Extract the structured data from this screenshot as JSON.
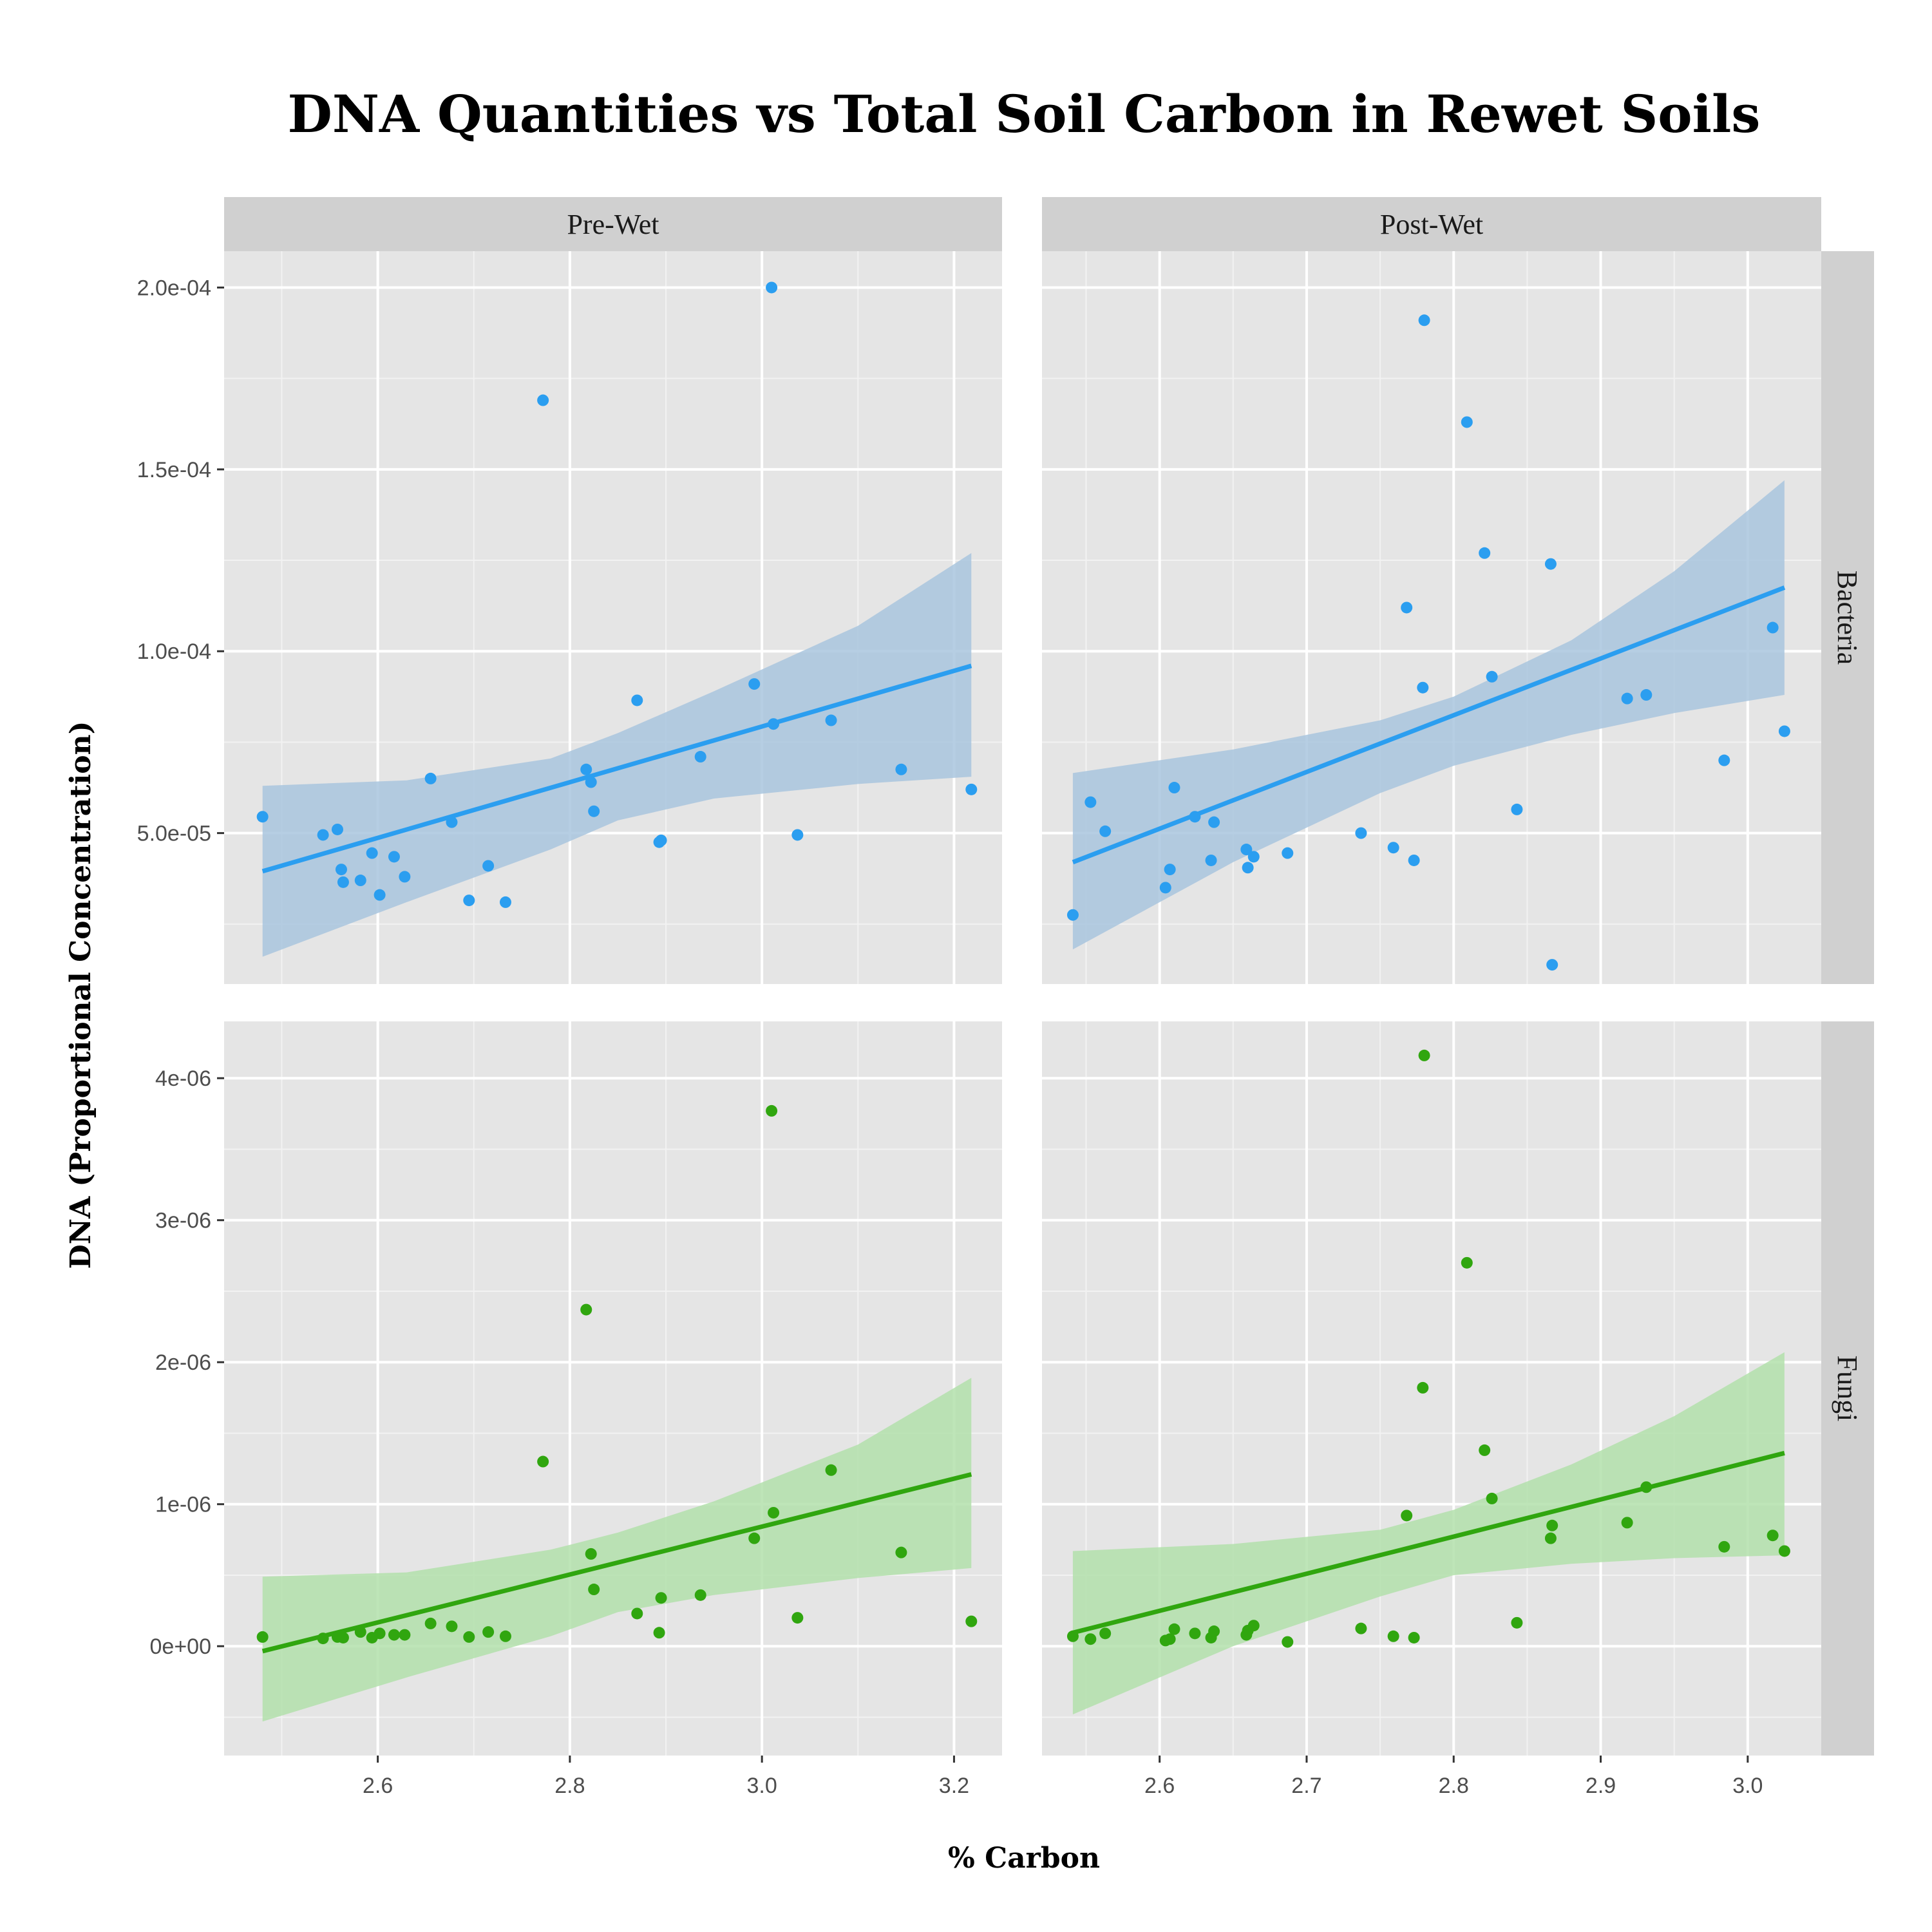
{
  "chart_data": {
    "type": "scatter",
    "title": "DNA Quantities vs Total Soil Carbon in Rewet Soils",
    "xlabel": "% Carbon",
    "ylabel": "DNA (Proportional Concentration)",
    "columns": [
      "Pre-Wet",
      "Post-Wet"
    ],
    "rows": [
      "Bacteria",
      "Fungi"
    ],
    "colors": {
      "Bacteria": "#2b9ef0",
      "Fungi": "#30a60f",
      "Bacteria_band": "#a9c5de",
      "Fungi_band": "#b3e0ac",
      "panel": "#e5e5e5",
      "strip": "#d0d0d0"
    },
    "grid": true,
    "panels": [
      {
        "row": "Bacteria",
        "column": "Pre-Wet",
        "xlim": [
          2.44,
          3.25
        ],
        "ylim": [
          8.5e-06,
          0.00021
        ],
        "x_ticks": [
          2.6,
          2.8,
          3.0,
          3.2
        ],
        "x_tick_labels": [
          "2.6",
          "2.8",
          "3.0",
          "3.2"
        ],
        "y_ticks": [
          5e-05,
          0.0001,
          0.00015,
          0.0002
        ],
        "y_tick_labels": [
          "5.0e-05",
          "1.0e-04",
          "1.5e-04",
          "2.0e-04"
        ],
        "points": [
          [
            2.48,
            5.45e-05
          ],
          [
            2.543,
            4.95e-05
          ],
          [
            2.558,
            5.1e-05
          ],
          [
            2.562,
            4e-05
          ],
          [
            2.564,
            3.65e-05
          ],
          [
            2.582,
            3.7e-05
          ],
          [
            2.594,
            4.45e-05
          ],
          [
            2.602,
            3.3e-05
          ],
          [
            2.617,
            4.35e-05
          ],
          [
            2.628,
            3.8e-05
          ],
          [
            2.655,
            6.5e-05
          ],
          [
            2.677,
            5.3e-05
          ],
          [
            2.695,
            3.15e-05
          ],
          [
            2.715,
            4.1e-05
          ],
          [
            2.733,
            3.1e-05
          ],
          [
            2.772,
            0.000169
          ],
          [
            2.817,
            6.75e-05
          ],
          [
            2.822,
            6.4e-05
          ],
          [
            2.825,
            5.6e-05
          ],
          [
            2.87,
            8.65e-05
          ],
          [
            2.893,
            4.75e-05
          ],
          [
            2.895,
            4.8e-05
          ],
          [
            2.936,
            7.1e-05
          ],
          [
            2.992,
            9.1e-05
          ],
          [
            3.01,
            0.0002
          ],
          [
            3.012,
            8e-05
          ],
          [
            3.037,
            4.95e-05
          ],
          [
            3.072,
            8.1e-05
          ],
          [
            3.145,
            6.75e-05
          ],
          [
            3.218,
            6.2e-05
          ]
        ],
        "fit": {
          "x": [
            2.48,
            3.218
          ],
          "y": [
            3.95e-05,
            9.6e-05
          ]
        },
        "band": {
          "x": [
            2.48,
            2.63,
            2.78,
            2.85,
            2.95,
            3.1,
            3.218
          ],
          "lower": [
            1.6e-05,
            3.1e-05,
            4.55e-05,
            5.35e-05,
            5.95e-05,
            6.35e-05,
            6.55e-05
          ],
          "upper": [
            6.3e-05,
            6.45e-05,
            7.05e-05,
            7.75e-05,
            8.9e-05,
            0.000107,
            0.000127
          ]
        }
      },
      {
        "row": "Bacteria",
        "column": "Post-Wet",
        "xlim": [
          2.52,
          3.05
        ],
        "ylim": [
          8.5e-06,
          0.00021
        ],
        "x_ticks": [
          2.6,
          2.7,
          2.8,
          2.9,
          3.0
        ],
        "x_tick_labels": [
          "2.6",
          "2.7",
          "2.8",
          "2.9",
          "3.0"
        ],
        "y_ticks": [
          5e-05,
          0.0001,
          0.00015,
          0.0002
        ],
        "y_tick_labels": [
          "5.0e-05",
          "1.0e-04",
          "1.5e-04",
          "2.0e-04"
        ],
        "points": [
          [
            2.541,
            2.75e-05
          ],
          [
            2.553,
            5.85e-05
          ],
          [
            2.563,
            5.05e-05
          ],
          [
            2.604,
            3.5e-05
          ],
          [
            2.607,
            4e-05
          ],
          [
            2.61,
            6.25e-05
          ],
          [
            2.624,
            5.45e-05
          ],
          [
            2.635,
            4.25e-05
          ],
          [
            2.637,
            5.3e-05
          ],
          [
            2.659,
            4.55e-05
          ],
          [
            2.66,
            4.05e-05
          ],
          [
            2.664,
            4.35e-05
          ],
          [
            2.687,
            4.45e-05
          ],
          [
            2.737,
            5e-05
          ],
          [
            2.759,
            4.6e-05
          ],
          [
            2.768,
            0.000112
          ],
          [
            2.773,
            4.25e-05
          ],
          [
            2.779,
            9e-05
          ],
          [
            2.78,
            0.000191
          ],
          [
            2.809,
            0.000163
          ],
          [
            2.821,
            0.000127
          ],
          [
            2.826,
            9.3e-05
          ],
          [
            2.843,
            5.65e-05
          ],
          [
            2.866,
            0.000124
          ],
          [
            2.867,
            1.38e-05
          ],
          [
            2.918,
            8.7e-05
          ],
          [
            2.931,
            8.8e-05
          ],
          [
            2.984,
            7e-05
          ],
          [
            3.017,
            0.0001065
          ],
          [
            3.025,
            7.8e-05
          ]
        ],
        "fit": {
          "x": [
            2.541,
            3.025
          ],
          "y": [
            4.2e-05,
            0.0001175
          ]
        },
        "band": {
          "x": [
            2.541,
            2.65,
            2.75,
            2.8,
            2.88,
            2.95,
            3.025
          ],
          "lower": [
            1.8e-05,
            4.2e-05,
            6.1e-05,
            6.85e-05,
            7.7e-05,
            8.3e-05,
            8.8e-05
          ],
          "upper": [
            6.65e-05,
            7.3e-05,
            8.1e-05,
            8.75e-05,
            0.000103,
            0.000122,
            0.000147
          ]
        }
      },
      {
        "row": "Fungi",
        "column": "Pre-Wet",
        "xlim": [
          2.44,
          3.25
        ],
        "ylim": [
          -7.7e-07,
          4.4e-06
        ],
        "x_ticks": [
          2.6,
          2.8,
          3.0,
          3.2
        ],
        "x_tick_labels": [
          "2.6",
          "2.8",
          "3.0",
          "3.2"
        ],
        "y_ticks": [
          0,
          1e-06,
          2e-06,
          3e-06,
          4e-06
        ],
        "y_tick_labels": [
          "0e+00",
          "1e-06",
          "2e-06",
          "3e-06",
          "4e-06"
        ],
        "points": [
          [
            2.48,
            6.5e-08
          ],
          [
            2.543,
            5.5e-08
          ],
          [
            2.558,
            6.5e-08
          ],
          [
            2.562,
            7e-08
          ],
          [
            2.564,
            6e-08
          ],
          [
            2.582,
            1e-07
          ],
          [
            2.594,
            6e-08
          ],
          [
            2.602,
            9e-08
          ],
          [
            2.617,
            8e-08
          ],
          [
            2.628,
            8e-08
          ],
          [
            2.655,
            1.6e-07
          ],
          [
            2.677,
            1.4e-07
          ],
          [
            2.695,
            6.5e-08
          ],
          [
            2.715,
            1e-07
          ],
          [
            2.733,
            7e-08
          ],
          [
            2.772,
            1.3e-06
          ],
          [
            2.817,
            2.37e-06
          ],
          [
            2.822,
            6.5e-07
          ],
          [
            2.825,
            4e-07
          ],
          [
            2.87,
            2.3e-07
          ],
          [
            2.893,
            9.5e-08
          ],
          [
            2.895,
            3.4e-07
          ],
          [
            2.936,
            3.6e-07
          ],
          [
            2.992,
            7.6e-07
          ],
          [
            3.01,
            3.77e-06
          ],
          [
            3.012,
            9.4e-07
          ],
          [
            3.037,
            2e-07
          ],
          [
            3.072,
            1.24e-06
          ],
          [
            3.145,
            6.6e-07
          ],
          [
            3.218,
            1.75e-07
          ]
        ],
        "fit": {
          "x": [
            2.48,
            3.218
          ],
          "y": [
            -3.5e-08,
            1.21e-06
          ]
        },
        "band": {
          "x": [
            2.48,
            2.63,
            2.78,
            2.85,
            2.95,
            3.1,
            3.218
          ],
          "lower": [
            -5.3e-07,
            -2.2e-07,
            7e-08,
            2.4e-07,
            3.6e-07,
            4.8e-07,
            5.5e-07
          ],
          "upper": [
            4.9e-07,
            5.2e-07,
            6.8e-07,
            8e-07,
            1.02e-06,
            1.42e-06,
            1.89e-06
          ]
        }
      },
      {
        "row": "Fungi",
        "column": "Post-Wet",
        "xlim": [
          2.52,
          3.05
        ],
        "ylim": [
          -7.7e-07,
          4.4e-06
        ],
        "x_ticks": [
          2.6,
          2.7,
          2.8,
          2.9,
          3.0
        ],
        "x_tick_labels": [
          "2.6",
          "2.7",
          "2.8",
          "2.9",
          "3.0"
        ],
        "y_ticks": [
          0,
          1e-06,
          2e-06,
          3e-06,
          4e-06
        ],
        "y_tick_labels": [
          "0e+00",
          "1e-06",
          "2e-06",
          "3e-06",
          "4e-06"
        ],
        "points": [
          [
            2.541,
            7e-08
          ],
          [
            2.553,
            5e-08
          ],
          [
            2.563,
            9e-08
          ],
          [
            2.604,
            4e-08
          ],
          [
            2.607,
            5e-08
          ],
          [
            2.61,
            1.2e-07
          ],
          [
            2.624,
            9e-08
          ],
          [
            2.635,
            6e-08
          ],
          [
            2.637,
            1.05e-07
          ],
          [
            2.659,
            8e-08
          ],
          [
            2.66,
            1.1e-07
          ],
          [
            2.664,
            1.45e-07
          ],
          [
            2.687,
            3e-08
          ],
          [
            2.737,
            1.25e-07
          ],
          [
            2.759,
            7e-08
          ],
          [
            2.768,
            9.2e-07
          ],
          [
            2.773,
            6e-08
          ],
          [
            2.779,
            1.82e-06
          ],
          [
            2.78,
            4.16e-06
          ],
          [
            2.809,
            2.7e-06
          ],
          [
            2.821,
            1.38e-06
          ],
          [
            2.826,
            1.04e-06
          ],
          [
            2.843,
            1.65e-07
          ],
          [
            2.866,
            7.6e-07
          ],
          [
            2.867,
            8.5e-07
          ],
          [
            2.918,
            8.7e-07
          ],
          [
            2.931,
            1.12e-06
          ],
          [
            2.984,
            7e-07
          ],
          [
            3.017,
            7.8e-07
          ],
          [
            3.025,
            6.7e-07
          ]
        ],
        "fit": {
          "x": [
            2.541,
            3.025
          ],
          "y": [
            9.5e-08,
            1.36e-06
          ]
        },
        "band": {
          "x": [
            2.541,
            2.65,
            2.75,
            2.8,
            2.88,
            2.95,
            3.025
          ],
          "lower": [
            -4.8e-07,
            0,
            3.5e-07,
            5e-07,
            5.8e-07,
            6.2e-07,
            6.4e-07
          ],
          "upper": [
            6.7e-07,
            7.2e-07,
            8.2e-07,
            9.6e-07,
            1.28e-06,
            1.62e-06,
            2.07e-06
          ]
        }
      }
    ]
  }
}
